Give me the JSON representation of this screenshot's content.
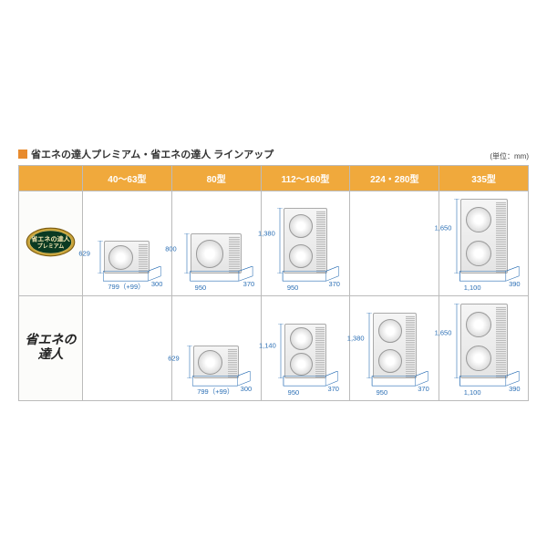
{
  "title": "省エネの達人プレミアム・省エネの達人 ラインアップ",
  "unit_note": "(単位：mm)",
  "colors": {
    "accent": "#e88b2e",
    "header_bg": "#f0a93c",
    "dim_text": "#2b6fb5",
    "border": "#bbb"
  },
  "columns": [
    {
      "label": "40～63型"
    },
    {
      "label": "80型"
    },
    {
      "label": "112～160型"
    },
    {
      "label": "224・280型"
    },
    {
      "label": "335型"
    }
  ],
  "rows": [
    {
      "series_label": "省エネの達人プレミアム",
      "badge_type": "premium",
      "units": [
        {
          "present": true,
          "fans": 1,
          "h": "629",
          "w": "799（+99）",
          "d": "300",
          "scale": {
            "w": 50,
            "h": 36
          }
        },
        {
          "present": true,
          "fans": 1,
          "h": "800",
          "w": "950",
          "d": "370",
          "scale": {
            "w": 56,
            "h": 44
          }
        },
        {
          "present": true,
          "fans": 2,
          "h": "1,380",
          "w": "950",
          "d": "370",
          "scale": {
            "w": 48,
            "h": 72
          }
        },
        {
          "present": false
        },
        {
          "present": true,
          "fans": 2,
          "h": "1,650",
          "w": "1,100",
          "d": "390",
          "scale": {
            "w": 52,
            "h": 82
          }
        }
      ]
    },
    {
      "series_label": "省エネの達人",
      "badge_type": "standard",
      "units": [
        {
          "present": false
        },
        {
          "present": true,
          "fans": 1,
          "h": "629",
          "w": "799（+99）",
          "d": "300",
          "scale": {
            "w": 50,
            "h": 36
          }
        },
        {
          "present": true,
          "fans": 2,
          "h": "1,140",
          "w": "950",
          "d": "370",
          "scale": {
            "w": 46,
            "h": 60
          }
        },
        {
          "present": true,
          "fans": 2,
          "h": "1,380",
          "w": "950",
          "d": "370",
          "scale": {
            "w": 48,
            "h": 72
          }
        },
        {
          "present": true,
          "fans": 2,
          "h": "1,650",
          "w": "1,100",
          "d": "390",
          "scale": {
            "w": 52,
            "h": 82
          }
        }
      ]
    }
  ]
}
